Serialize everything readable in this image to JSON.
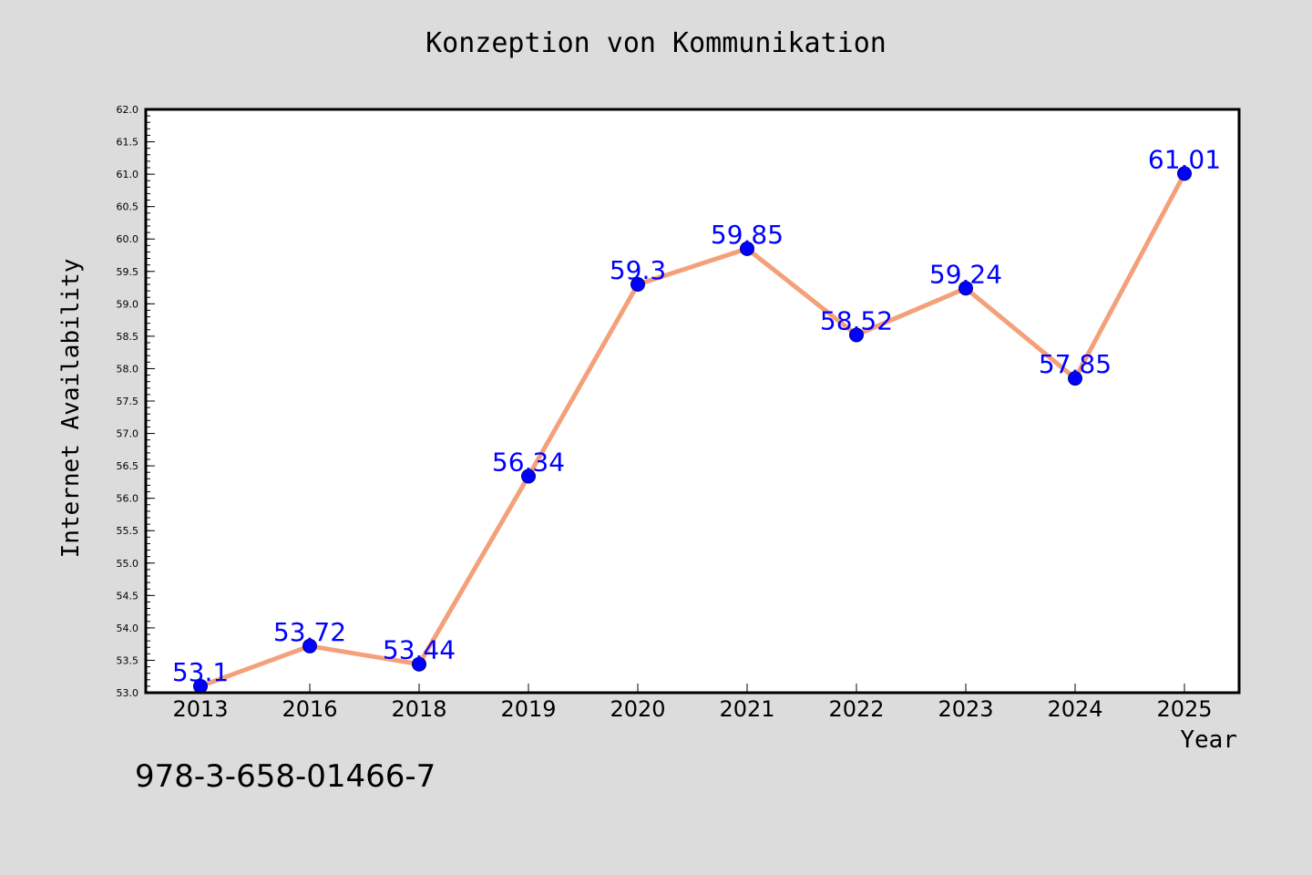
{
  "footer": {
    "isbn": "978-3-658-01466-7"
  },
  "colors": {
    "background": "#dcdcdc",
    "plot_background": "#ffffff",
    "line": "#f4a07a",
    "marker": "#0000ff",
    "data_label": "#0000ff"
  },
  "chart_data": {
    "type": "line",
    "title": "Konzeption von Kommunikation",
    "xlabel": "Year",
    "ylabel": "Internet Availability",
    "categories": [
      "2013",
      "2016",
      "2018",
      "2019",
      "2020",
      "2021",
      "2022",
      "2023",
      "2024",
      "2025"
    ],
    "series": [
      {
        "values": [
          53.1,
          53.72,
          53.44,
          56.34,
          59.3,
          59.85,
          58.52,
          59.24,
          57.85,
          61.01
        ],
        "labels": [
          "53.1",
          "53.72",
          "53.44",
          "56.34",
          "59.3",
          "59.85",
          "58.52",
          "59.24",
          "57.85",
          "61.01"
        ]
      }
    ],
    "ylim": [
      53.0,
      62.0
    ],
    "yticks": [
      "53.0",
      "53.5",
      "54.0",
      "54.5",
      "55.0",
      "55.5",
      "56.0",
      "56.5",
      "57.0",
      "57.5",
      "58.0",
      "58.5",
      "59.0",
      "59.5",
      "60.0",
      "60.5",
      "61.0",
      "61.5",
      "62.0"
    ],
    "grid": false,
    "legend": "none"
  }
}
